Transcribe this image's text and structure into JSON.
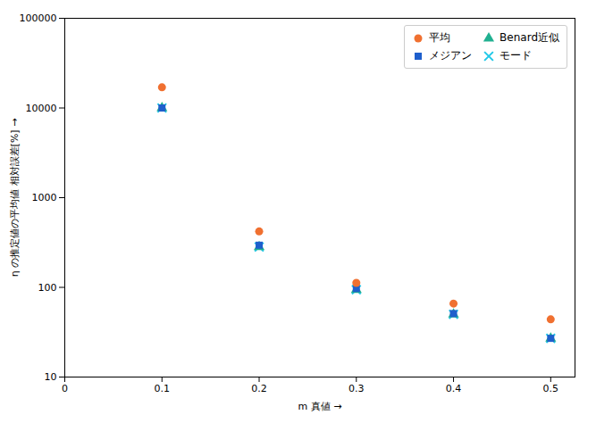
{
  "chart_data": {
    "type": "scatter",
    "x": [
      0.1,
      0.2,
      0.3,
      0.4,
      0.5
    ],
    "series": [
      {
        "name": "平均",
        "color": "#f07030",
        "marker": "circle",
        "values": [
          17000,
          420,
          112,
          66,
          44
        ]
      },
      {
        "name": "メジアン",
        "color": "#1e5fcc",
        "marker": "square",
        "values": [
          10000,
          295,
          97,
          51,
          27
        ]
      },
      {
        "name": "Benard近似",
        "color": "#20b090",
        "marker": "triangle",
        "values": [
          10000,
          282,
          94,
          50,
          27
        ]
      },
      {
        "name": "モード",
        "color": "#20c8e8",
        "marker": "x",
        "values": [
          10000,
          282,
          94,
          50,
          27
        ]
      }
    ],
    "xlabel": "m 真値",
    "ylabel": "η の推定値の平均値 相対誤差[%]",
    "xlim": [
      0,
      0.525
    ],
    "xticks": [
      0,
      0.1,
      0.2,
      0.3,
      0.4,
      0.5
    ],
    "ylim": [
      10,
      100000
    ],
    "yticks": [
      10,
      100,
      1000,
      10000,
      100000
    ],
    "log": "y",
    "grid": false,
    "legend": "upper right"
  }
}
